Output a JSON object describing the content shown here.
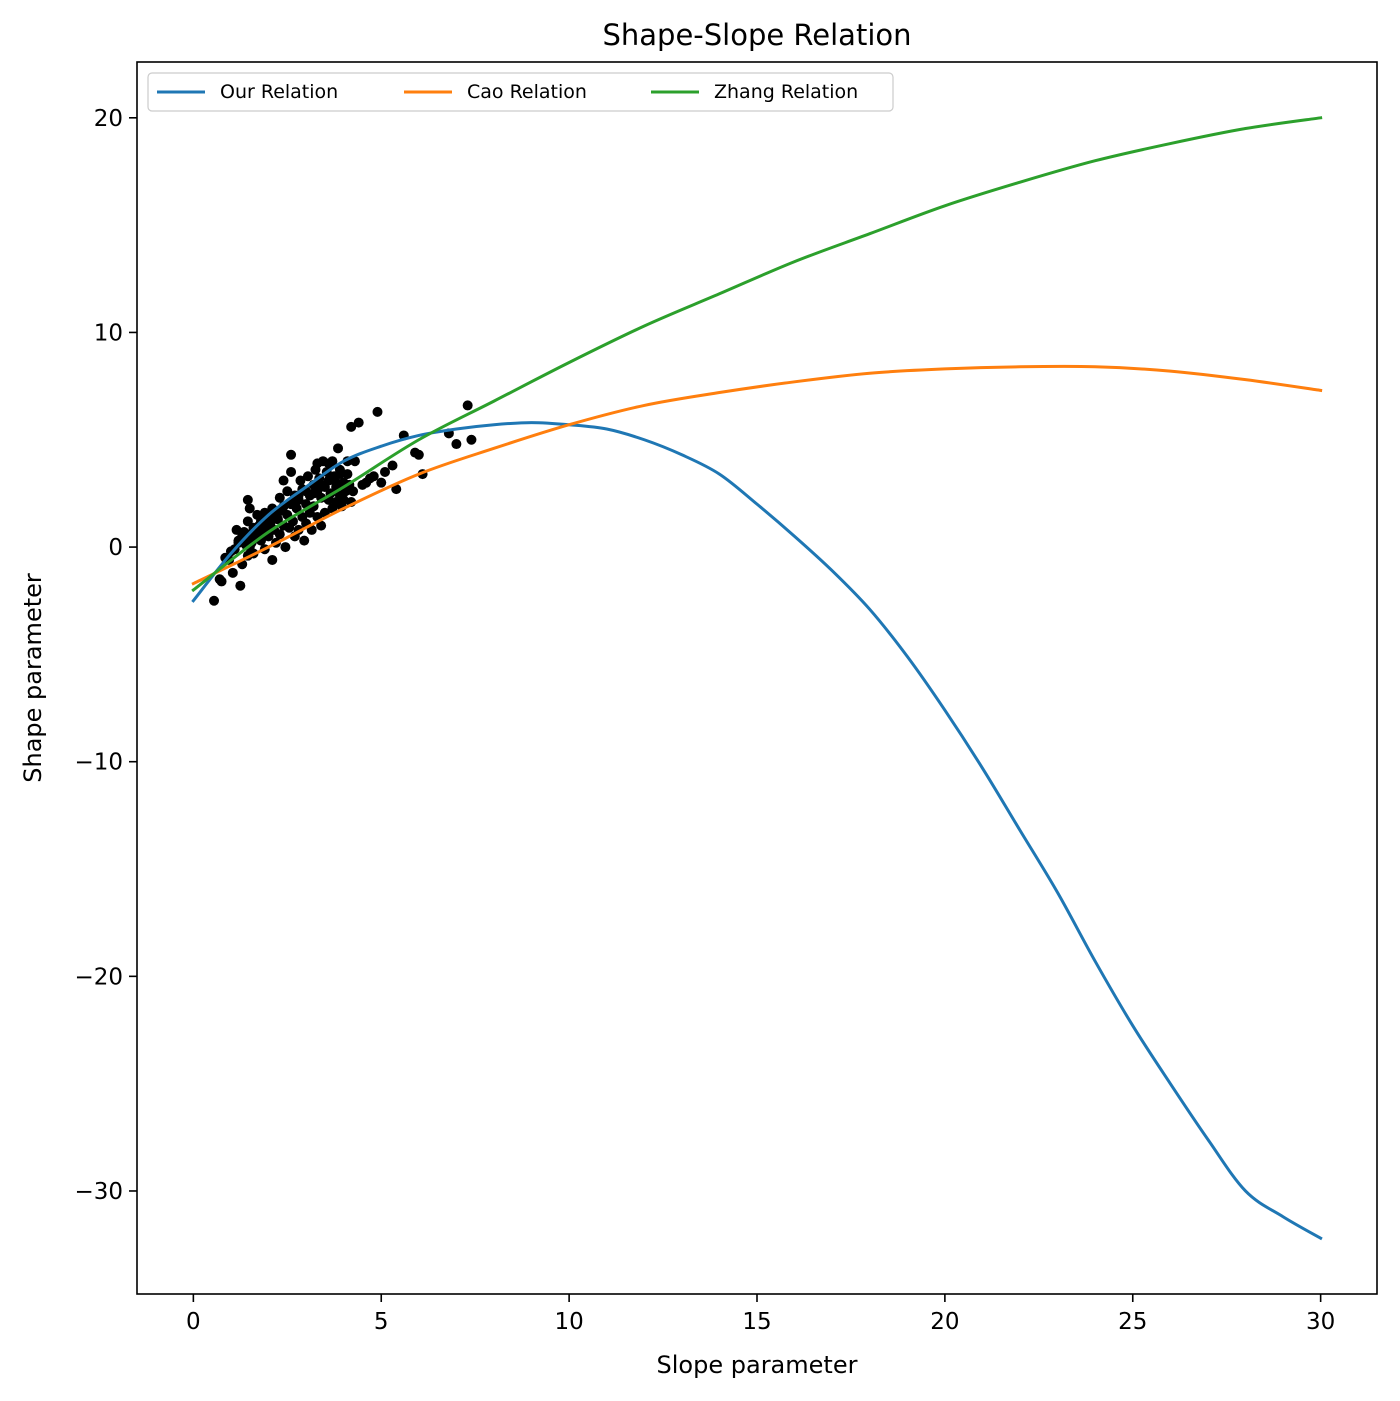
{
  "chart_data": {
    "type": "line",
    "title": "Shape-Slope Relation",
    "xlabel": "Slope parameter",
    "ylabel": "Shape parameter",
    "xlim": [
      -1.5,
      31.5
    ],
    "ylim": [
      -34.8,
      22.6
    ],
    "xticks": [
      0,
      5,
      10,
      15,
      20,
      25,
      30
    ],
    "yticks": [
      -30,
      -20,
      -10,
      0,
      10,
      20
    ],
    "ytick_labels": [
      "−30",
      "−20",
      "−10",
      "0",
      "10",
      "20"
    ],
    "grid": false,
    "legend": {
      "placement": "top-left",
      "ncol": 3
    },
    "series": [
      {
        "name": "Our Relation",
        "color": "#1f77b4",
        "x": [
          0,
          1,
          2,
          3,
          4,
          5,
          6,
          7,
          8,
          9,
          10,
          11,
          12,
          13,
          14,
          15,
          16,
          17,
          18,
          19,
          20,
          21,
          22,
          23,
          24,
          25,
          26,
          27,
          28,
          29,
          30
        ],
        "y": [
          -2.5,
          -0.3,
          1.5,
          2.8,
          4.0,
          4.7,
          5.2,
          5.5,
          5.7,
          5.8,
          5.7,
          5.5,
          5.0,
          4.3,
          3.4,
          2.0,
          0.5,
          -1.1,
          -2.9,
          -5.1,
          -7.6,
          -10.3,
          -13.2,
          -16.1,
          -19.3,
          -22.3,
          -25.0,
          -27.6,
          -30.0,
          -31.2,
          -32.2
        ]
      },
      {
        "name": "Cao Relation",
        "color": "#ff7f0e",
        "x": [
          0,
          2,
          4,
          6,
          8,
          10,
          12,
          14,
          16,
          18,
          20,
          22,
          24,
          26,
          28,
          30
        ],
        "y": [
          -1.7,
          0.0,
          1.8,
          3.4,
          4.6,
          5.7,
          6.6,
          7.2,
          7.7,
          8.1,
          8.3,
          8.4,
          8.4,
          8.2,
          7.8,
          7.3
        ]
      },
      {
        "name": "Zhang Relation",
        "color": "#2ca02c",
        "x": [
          0,
          2,
          4,
          6,
          8,
          10,
          12,
          14,
          16,
          18,
          20,
          22,
          24,
          26,
          28,
          30
        ],
        "y": [
          -2.0,
          0.7,
          2.8,
          5.0,
          6.8,
          8.6,
          10.3,
          11.8,
          13.3,
          14.6,
          15.9,
          17.0,
          18.0,
          18.8,
          19.5,
          20.0
        ]
      },
      {
        "name": "",
        "type": "scatter",
        "color": "#000000",
        "x": [
          0.55,
          0.7,
          0.75,
          0.85,
          0.95,
          1.05,
          1.1,
          1.15,
          1.2,
          1.25,
          1.3,
          1.3,
          1.35,
          1.4,
          1.45,
          1.45,
          1.5,
          1.5,
          1.55,
          1.6,
          1.6,
          1.65,
          1.7,
          1.7,
          1.75,
          1.8,
          1.8,
          1.85,
          1.9,
          1.9,
          1.95,
          2.0,
          2.0,
          2.05,
          2.1,
          2.1,
          2.15,
          2.2,
          2.2,
          2.25,
          2.3,
          2.3,
          2.35,
          2.4,
          2.4,
          2.45,
          2.5,
          2.5,
          2.55,
          2.6,
          2.6,
          2.65,
          2.7,
          2.7,
          2.75,
          2.8,
          2.8,
          2.85,
          2.9,
          2.9,
          2.95,
          3.0,
          3.0,
          3.05,
          3.1,
          3.1,
          3.15,
          3.2,
          3.2,
          3.25,
          3.3,
          3.3,
          3.35,
          3.4,
          3.4,
          3.45,
          3.5,
          3.5,
          3.55,
          3.6,
          3.6,
          3.65,
          3.7,
          3.7,
          3.75,
          3.8,
          3.8,
          3.85,
          3.9,
          3.9,
          3.95,
          4.0,
          4.0,
          4.05,
          4.1,
          4.1,
          4.15,
          4.2,
          4.25,
          4.3,
          4.4,
          4.5,
          4.6,
          4.7,
          4.8,
          4.9,
          5.0,
          5.1,
          5.3,
          5.4,
          5.6,
          5.9,
          6.0,
          6.1,
          6.8,
          7.0,
          7.3,
          7.4,
          1.0,
          1.2,
          1.4,
          1.6,
          1.8,
          2.0,
          2.2,
          2.4,
          2.6,
          2.8,
          3.0,
          3.2,
          3.4,
          3.6,
          3.8,
          1.45,
          1.5,
          2.6,
          2.7,
          3.3,
          3.9,
          4.2
        ],
        "y": [
          -2.5,
          -1.5,
          -1.6,
          -0.5,
          -0.6,
          -1.2,
          -0.1,
          0.8,
          0.3,
          -1.8,
          0.5,
          -0.8,
          0.7,
          0.1,
          1.2,
          -0.4,
          0.6,
          1.8,
          0.2,
          0.9,
          -0.3,
          0.8,
          1.5,
          0.4,
          1.0,
          1.2,
          0.3,
          0.7,
          1.6,
          -0.1,
          0.9,
          1.4,
          0.5,
          1.1,
          1.8,
          -0.6,
          0.8,
          1.5,
          0.2,
          1.3,
          2.3,
          0.6,
          1.7,
          1.0,
          3.1,
          0.0,
          1.5,
          2.6,
          0.9,
          2.0,
          4.3,
          1.2,
          2.4,
          0.5,
          1.8,
          2.2,
          0.8,
          3.1,
          1.4,
          2.7,
          0.3,
          2.0,
          1.1,
          3.3,
          1.6,
          2.4,
          0.8,
          2.9,
          1.9,
          3.6,
          1.4,
          2.6,
          3.2,
          1.0,
          2.3,
          4.0,
          2.8,
          1.6,
          3.5,
          2.2,
          3.9,
          2.5,
          1.8,
          4.0,
          3.3,
          2.1,
          2.8,
          4.6,
          2.4,
          3.6,
          1.9,
          3.0,
          2.2,
          2.6,
          4.0,
          3.4,
          2.9,
          5.6,
          2.6,
          4.0,
          5.8,
          2.9,
          3.0,
          3.2,
          3.3,
          6.3,
          3.0,
          3.5,
          3.8,
          2.7,
          5.2,
          4.4,
          4.3,
          3.4,
          5.3,
          4.8,
          6.6,
          5.0,
          -0.2,
          0.2,
          0.4,
          0.6,
          1.0,
          1.3,
          1.4,
          1.9,
          2.1,
          2.4,
          2.6,
          2.5,
          2.9,
          3.1,
          3.0,
          2.2,
          0.0,
          3.5,
          2.0,
          3.9,
          3.4,
          2.1
        ]
      }
    ]
  }
}
